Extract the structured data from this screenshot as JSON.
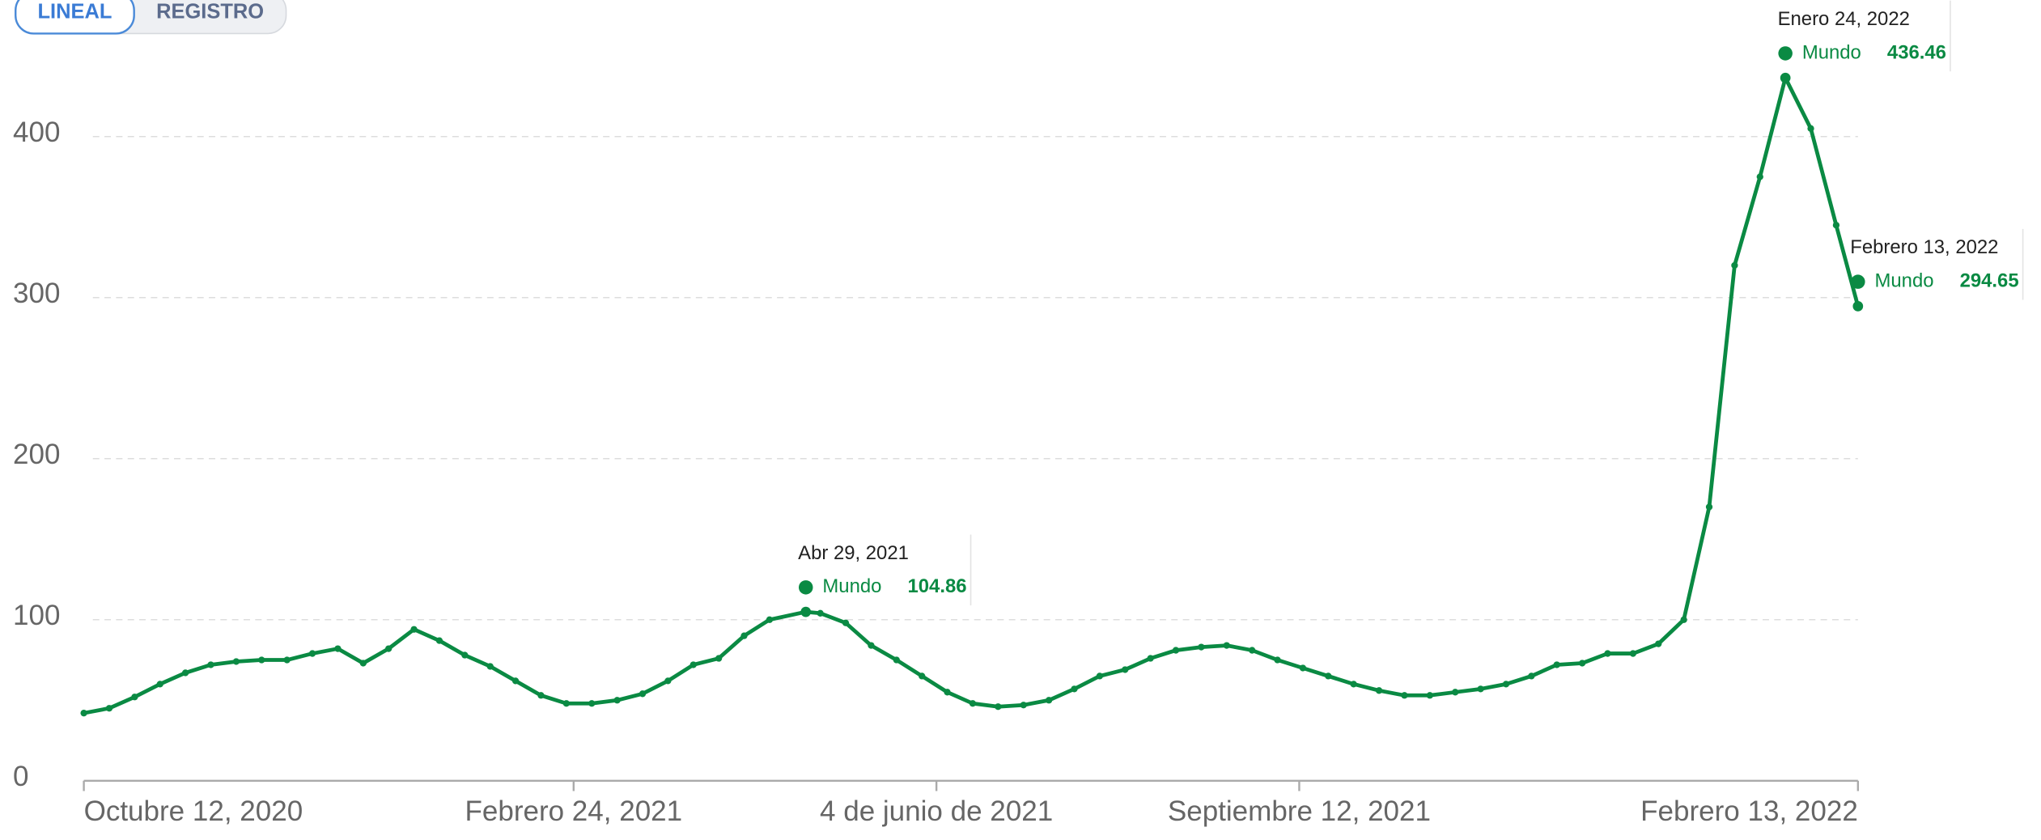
{
  "buttons": [
    "LINEAL",
    "REGISTRO"
  ],
  "chart_data": {
    "type": "line",
    "x": [
      "2020-10-12",
      "2020-10-19",
      "2020-10-26",
      "2020-11-02",
      "2020-11-09",
      "2020-11-16",
      "2020-11-23",
      "2020-11-30",
      "2020-12-07",
      "2020-12-14",
      "2020-12-21",
      "2020-12-28",
      "2021-01-04",
      "2021-01-11",
      "2021-01-18",
      "2021-01-25",
      "2021-02-01",
      "2021-02-08",
      "2021-02-15",
      "2021-02-22",
      "2021-03-01",
      "2021-03-08",
      "2021-03-15",
      "2021-03-22",
      "2021-03-29",
      "2021-04-05",
      "2021-04-12",
      "2021-04-19",
      "2021-04-29",
      "2021-05-03",
      "2021-05-10",
      "2021-05-17",
      "2021-05-24",
      "2021-05-31",
      "2021-06-07",
      "2021-06-14",
      "2021-06-21",
      "2021-06-28",
      "2021-07-05",
      "2021-07-12",
      "2021-07-19",
      "2021-07-26",
      "2021-08-02",
      "2021-08-09",
      "2021-08-16",
      "2021-08-23",
      "2021-08-30",
      "2021-09-06",
      "2021-09-13",
      "2021-09-20",
      "2021-09-27",
      "2021-10-04",
      "2021-10-11",
      "2021-10-18",
      "2021-10-25",
      "2021-11-01",
      "2021-11-08",
      "2021-11-15",
      "2021-11-22",
      "2021-11-29",
      "2021-12-06",
      "2021-12-13",
      "2021-12-20",
      "2021-12-27",
      "2022-01-03",
      "2022-01-10",
      "2022-01-17",
      "2022-01-24",
      "2022-01-31",
      "2022-02-07",
      "2022-02-13"
    ],
    "series": [
      {
        "name": "Mundo",
        "color": "#0a8a43",
        "values": [
          42,
          45,
          52,
          60,
          67,
          72,
          74,
          75,
          75,
          79,
          82,
          73,
          82,
          94,
          87,
          78,
          71,
          62,
          53,
          48,
          48,
          50,
          54,
          62,
          72,
          76,
          90,
          100,
          104.86,
          104,
          98,
          84,
          75,
          65,
          55,
          48,
          46,
          47,
          50,
          57,
          65,
          69,
          76,
          81,
          83,
          84,
          81,
          75,
          70,
          65,
          60,
          56,
          53,
          53,
          55,
          57,
          60,
          65,
          72,
          73,
          79,
          79,
          85,
          100,
          170,
          320,
          375,
          436.46,
          405,
          345,
          294.65
        ]
      }
    ],
    "xlim": [
      "2020-10-12",
      "2022-02-13"
    ],
    "xticks": [
      {
        "value": "2020-10-12",
        "label": "Octubre 12, 2020"
      },
      {
        "value": "2021-02-24",
        "label": "Febrero 24, 2021"
      },
      {
        "value": "2021-06-04",
        "label": "4 de junio de 2021"
      },
      {
        "value": "2021-09-12",
        "label": "Septiembre 12, 2021"
      },
      {
        "value": "2022-02-13",
        "label": "Febrero 13, 2022"
      }
    ],
    "ylim": [
      0,
      450
    ],
    "yticks": [
      0,
      100,
      200,
      300,
      400
    ],
    "grid": true,
    "annotations": [
      {
        "x": "2021-04-29",
        "label": "Abr 29, 2021",
        "value": 104.86
      },
      {
        "x": "2022-01-24",
        "label": "Enero 24, 2022",
        "value": 436.46
      },
      {
        "x": "2022-02-13",
        "label": "Febrero 13, 2022",
        "value": 294.65
      }
    ]
  }
}
